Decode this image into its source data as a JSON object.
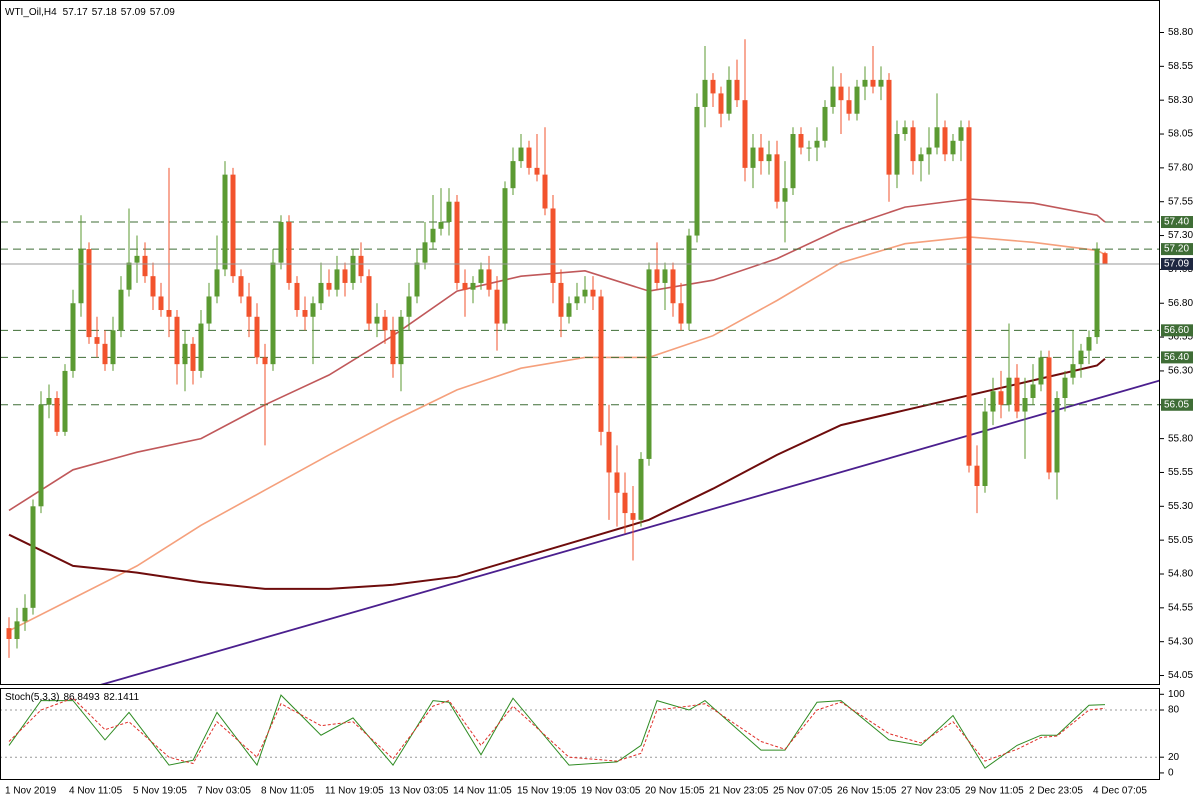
{
  "chart_data": [
    {
      "type": "candlestick",
      "title": "WTI_Oil,H4",
      "categories": [
        "1 Nov 2019",
        null,
        null,
        null,
        null,
        null,
        null,
        null,
        "4 Nov 11:05",
        null,
        null,
        null,
        null,
        null,
        null,
        null,
        "5 Nov 19:05",
        null,
        null,
        null,
        null,
        null,
        null,
        null,
        "7 Nov 03:05",
        null,
        null,
        null,
        null,
        null,
        null,
        null,
        "8 Nov 11:05",
        null,
        null,
        null,
        null,
        null,
        null,
        null,
        "11 Nov 19:05",
        null,
        null,
        null,
        null,
        null,
        null,
        null,
        "13 Nov 03:05",
        null,
        null,
        null,
        null,
        null,
        null,
        null,
        "14 Nov 11:05",
        null,
        null,
        null,
        null,
        null,
        null,
        null,
        "15 Nov 19:05",
        null,
        null,
        null,
        null,
        null,
        null,
        null,
        "19 Nov 03:05",
        null,
        null,
        null,
        null,
        null,
        null,
        null,
        "20 Nov 15:05",
        null,
        null,
        null,
        null,
        null,
        null,
        null,
        "21 Nov 23:05",
        null,
        null,
        null,
        null,
        null,
        null,
        null,
        "25 Nov 07:05",
        null,
        null,
        null,
        null,
        null,
        null,
        null,
        "26 Nov 15:05",
        null,
        null,
        null,
        null,
        null,
        null,
        null,
        "27 Nov 23:05",
        null,
        null,
        null,
        null,
        null,
        null,
        null,
        "29 Nov 11:05",
        null,
        null,
        null,
        null,
        null,
        null,
        null,
        "2 Dec 23:05",
        null,
        null,
        null,
        null,
        null,
        null,
        null,
        "4 Dec 07:05",
        null
      ],
      "open": [
        54.4,
        54.32,
        54.45,
        54.55,
        55.3,
        56.05,
        56.1,
        55.85,
        56.3,
        56.8,
        57.2,
        56.55,
        56.5,
        56.35,
        56.6,
        56.9,
        57.1,
        57.15,
        57.0,
        56.85,
        56.75,
        56.7,
        56.35,
        56.5,
        56.3,
        56.65,
        56.85,
        57.05,
        57.75,
        57.0,
        56.85,
        56.7,
        56.4,
        56.35,
        57.1,
        57.4,
        56.95,
        56.75,
        56.7,
        56.8,
        56.95,
        56.9,
        57.05,
        56.95,
        57.15,
        57.0,
        56.65,
        56.7,
        56.6,
        56.35,
        56.7,
        56.85,
        57.1,
        57.25,
        57.35,
        57.4,
        57.55,
        56.95,
        56.9,
        56.95,
        57.05,
        56.9,
        56.65,
        57.65,
        57.85,
        57.95,
        57.8,
        57.75,
        57.5,
        56.95,
        56.7,
        56.8,
        56.85,
        56.9,
        56.85,
        55.85,
        55.55,
        55.4,
        55.25,
        55.2,
        55.65,
        57.05,
        56.95,
        57.05,
        56.8,
        56.65,
        57.3,
        58.25,
        58.45,
        58.35,
        58.2,
        58.45,
        58.3,
        57.8,
        57.95,
        57.85,
        57.9,
        57.55,
        57.65,
        58.05,
        57.95,
        57.95,
        58.0,
        58.25,
        58.4,
        58.3,
        58.2,
        58.4,
        58.45,
        58.4,
        58.45,
        57.75,
        58.05,
        58.1,
        57.85,
        57.9,
        57.95,
        58.1,
        57.9,
        58.0,
        58.1,
        55.6,
        55.45,
        56.0,
        56.15,
        56.05,
        56.25,
        56.0,
        56.1,
        56.2,
        56.4,
        55.55,
        56.1,
        56.25,
        56.35,
        56.45,
        56.55,
        57.17
      ],
      "high": [
        54.48,
        54.55,
        54.65,
        55.35,
        56.15,
        56.2,
        56.15,
        56.35,
        56.9,
        57.45,
        57.25,
        56.7,
        56.6,
        56.7,
        57.0,
        57.5,
        57.3,
        57.25,
        57.1,
        56.95,
        57.8,
        56.75,
        56.6,
        56.55,
        56.75,
        56.95,
        57.3,
        57.85,
        57.8,
        57.05,
        56.95,
        56.8,
        56.5,
        57.2,
        57.45,
        57.45,
        57.0,
        56.85,
        56.85,
        57.1,
        57.05,
        57.15,
        57.1,
        57.2,
        57.25,
        57.05,
        56.8,
        56.75,
        56.7,
        56.75,
        56.95,
        57.2,
        57.4,
        57.6,
        57.65,
        57.65,
        57.6,
        57.05,
        57.0,
        57.1,
        57.15,
        57.0,
        57.7,
        57.95,
        58.05,
        58.0,
        58.05,
        58.1,
        57.6,
        57.05,
        56.85,
        56.95,
        57.0,
        57.0,
        56.9,
        56.05,
        55.75,
        55.55,
        55.45,
        55.7,
        57.1,
        57.25,
        57.1,
        57.1,
        56.95,
        57.35,
        58.35,
        58.7,
        58.5,
        58.4,
        58.55,
        58.6,
        58.75,
        58.05,
        58.05,
        58.0,
        58.0,
        57.85,
        58.1,
        58.1,
        58.0,
        58.1,
        58.3,
        58.55,
        58.5,
        58.4,
        58.45,
        58.55,
        58.7,
        58.55,
        58.5,
        58.15,
        58.15,
        58.15,
        57.95,
        58.1,
        58.35,
        58.15,
        58.05,
        58.15,
        58.15,
        55.75,
        56.1,
        56.25,
        56.3,
        56.65,
        56.35,
        56.25,
        56.35,
        56.45,
        56.45,
        56.15,
        56.3,
        56.6,
        56.5,
        56.6,
        57.25,
        57.18
      ],
      "low": [
        54.18,
        54.25,
        54.38,
        54.5,
        55.25,
        55.95,
        55.82,
        55.82,
        56.25,
        56.7,
        56.5,
        56.4,
        56.3,
        56.3,
        56.55,
        56.85,
        56.95,
        56.95,
        56.75,
        56.7,
        56.55,
        56.2,
        56.15,
        56.2,
        56.25,
        56.6,
        56.8,
        57.0,
        56.95,
        56.8,
        56.55,
        56.35,
        55.75,
        56.3,
        57.05,
        56.9,
        56.7,
        56.6,
        56.35,
        56.75,
        56.85,
        56.85,
        56.85,
        56.9,
        56.95,
        56.6,
        56.55,
        56.5,
        56.25,
        56.15,
        56.6,
        56.8,
        57.05,
        57.2,
        57.3,
        57.3,
        56.9,
        56.7,
        56.8,
        56.9,
        56.85,
        56.45,
        56.6,
        57.6,
        57.8,
        57.75,
        57.7,
        57.45,
        56.8,
        56.55,
        56.65,
        56.75,
        56.8,
        56.75,
        55.75,
        55.2,
        55.15,
        55.1,
        54.9,
        55.15,
        55.6,
        56.9,
        56.75,
        56.7,
        56.6,
        56.6,
        57.25,
        58.1,
        58.25,
        58.1,
        58.15,
        58.25,
        57.7,
        57.65,
        57.75,
        57.75,
        57.5,
        57.25,
        57.6,
        57.9,
        57.85,
        57.85,
        57.95,
        58.2,
        58.05,
        58.15,
        58.15,
        58.3,
        58.35,
        58.3,
        57.55,
        57.65,
        58.0,
        57.75,
        57.7,
        57.75,
        57.9,
        57.85,
        57.85,
        57.85,
        55.55,
        55.25,
        55.4,
        55.9,
        55.95,
        56.0,
        55.95,
        55.65,
        56.05,
        56.15,
        55.5,
        55.35,
        56.0,
        56.2,
        56.25,
        56.35,
        56.5,
        57.09
      ],
      "close": [
        54.32,
        54.45,
        54.55,
        55.3,
        56.05,
        56.1,
        55.85,
        56.3,
        56.8,
        57.2,
        56.55,
        56.5,
        56.35,
        56.6,
        56.9,
        57.1,
        57.15,
        57.0,
        56.85,
        56.75,
        56.7,
        56.35,
        56.5,
        56.3,
        56.65,
        56.85,
        57.05,
        57.75,
        57.0,
        56.85,
        56.7,
        56.4,
        56.35,
        57.1,
        57.4,
        56.95,
        56.75,
        56.7,
        56.8,
        56.95,
        56.9,
        57.05,
        56.95,
        57.15,
        57.0,
        56.65,
        56.7,
        56.6,
        56.35,
        56.7,
        56.85,
        57.1,
        57.25,
        57.35,
        57.4,
        57.55,
        56.95,
        56.9,
        56.95,
        57.05,
        56.9,
        56.65,
        57.65,
        57.85,
        57.95,
        57.8,
        57.75,
        57.5,
        56.95,
        56.7,
        56.8,
        56.85,
        56.9,
        56.85,
        55.85,
        55.55,
        55.4,
        55.25,
        55.2,
        55.65,
        57.05,
        56.95,
        57.05,
        56.8,
        56.65,
        57.3,
        58.25,
        58.45,
        58.35,
        58.2,
        58.45,
        58.3,
        57.8,
        57.95,
        57.85,
        57.9,
        57.55,
        57.65,
        58.05,
        57.95,
        57.95,
        58.0,
        58.25,
        58.4,
        58.3,
        58.2,
        58.4,
        58.45,
        58.4,
        58.45,
        57.75,
        58.05,
        58.1,
        57.85,
        57.9,
        57.95,
        58.1,
        57.9,
        58.0,
        58.1,
        55.6,
        55.45,
        56.0,
        56.15,
        56.05,
        56.25,
        56.0,
        56.1,
        56.2,
        56.4,
        55.55,
        56.1,
        56.25,
        56.35,
        56.45,
        56.55,
        57.2,
        57.09
      ],
      "up_color": "#5b9a32",
      "down_color": "#f2532d",
      "ylim": [
        53.98,
        59.04
      ],
      "yticks": [
        {
          "value": 58.8,
          "label": "58.80"
        },
        58.55,
        {
          "value": 58.3,
          "label": "58.30"
        },
        58.05,
        {
          "value": 57.8,
          "label": "57.80"
        },
        57.55,
        {
          "value": 57.3,
          "label": "57.30"
        },
        57.05,
        {
          "value": 56.8,
          "label": "56.80"
        },
        56.55,
        {
          "value": 56.3,
          "label": "56.30"
        },
        56.05,
        {
          "value": 55.8,
          "label": "55.80"
        },
        55.55,
        {
          "value": 55.3,
          "label": "55.30"
        },
        55.05,
        {
          "value": 54.8,
          "label": "54.80"
        },
        54.55,
        {
          "value": 54.3,
          "label": "54.30"
        },
        54.05
      ],
      "levels": [
        {
          "value": 57.4,
          "label": "57.40"
        },
        {
          "value": 57.2,
          "label": "57.20"
        },
        {
          "value": 56.6,
          "label": "56.60"
        },
        {
          "value": 56.4,
          "label": "56.40"
        },
        56.05
      ],
      "level_color": "#3f6d36",
      "price_color": "#1e2740",
      "overlays": [
        {
          "color": "#c0585a",
          "x": [
            0,
            8,
            16,
            24,
            32,
            40,
            48,
            56,
            64,
            72,
            80,
            88,
            96,
            104,
            112,
            120,
            128,
            136,
            137
          ],
          "values": [
            55.27,
            55.57,
            55.7,
            55.8,
            56.05,
            56.27,
            56.56,
            56.89,
            57.0,
            57.04,
            56.89,
            56.97,
            57.13,
            57.35,
            57.51,
            57.57,
            57.54,
            57.45,
            57.4
          ]
        },
        {
          "color": "#f5a07c",
          "x": [
            0,
            8,
            16,
            24,
            32,
            40,
            48,
            56,
            64,
            72,
            80,
            88,
            96,
            104,
            112,
            120,
            128,
            136,
            137
          ],
          "values": [
            54.38,
            54.62,
            54.86,
            55.16,
            55.42,
            55.68,
            55.93,
            56.16,
            56.32,
            56.4,
            56.4,
            56.56,
            56.82,
            57.1,
            57.24,
            57.29,
            57.25,
            57.19,
            57.16
          ]
        },
        {
          "color": "#6e0c0c",
          "x": [
            0,
            8,
            16,
            24,
            32,
            40,
            48,
            56,
            64,
            72,
            80,
            88,
            96,
            104,
            112,
            120,
            128,
            136,
            137
          ],
          "values": [
            55.09,
            54.86,
            54.81,
            54.74,
            54.69,
            54.69,
            54.72,
            54.78,
            54.92,
            55.06,
            55.2,
            55.43,
            55.68,
            55.9,
            56.01,
            56.12,
            56.23,
            56.34,
            56.39
          ]
        }
      ],
      "trendline": {
        "color": "#4b1f8e",
        "x": [
          11.4,
          143.9
        ],
        "values": [
          53.98,
          56.23
        ]
      }
    },
    {
      "type": "stochastic",
      "title": "Stoch(5,3,3)",
      "x": [
        0,
        4,
        8,
        12,
        15,
        20,
        23,
        26,
        31,
        34,
        39,
        43,
        48,
        53,
        55,
        59,
        63,
        70,
        76,
        79,
        81,
        85,
        87,
        94,
        97,
        101,
        104,
        110,
        114,
        118,
        122,
        126,
        129,
        131,
        135,
        137
      ],
      "series": [
        {
          "color": "#2e8b22",
          "values": [
            35,
            92,
            92,
            42,
            77,
            10,
            16,
            77,
            10,
            99,
            48,
            70,
            10,
            92,
            90,
            23,
            95,
            10,
            14,
            35,
            92,
            80,
            92,
            29,
            29,
            90,
            92,
            42,
            35,
            73,
            6,
            35,
            48,
            48,
            86,
            86.8493
          ]
        },
        {
          "color": "#e0302a",
          "dash": true,
          "values": [
            40,
            80,
            95,
            55,
            65,
            20,
            12,
            65,
            20,
            88,
            60,
            65,
            18,
            85,
            92,
            35,
            85,
            20,
            15,
            25,
            80,
            85,
            88,
            40,
            30,
            80,
            90,
            50,
            38,
            65,
            15,
            30,
            45,
            47,
            80,
            82.1411
          ]
        }
      ],
      "ylim": [
        -9,
        108
      ],
      "yticks": [
        100,
        80,
        20,
        0
      ],
      "levels": [
        80,
        20
      ]
    }
  ]
}
